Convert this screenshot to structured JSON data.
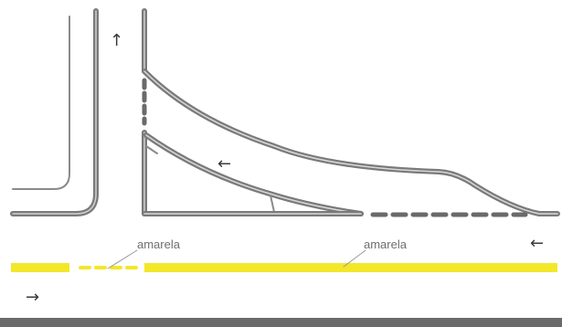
{
  "labels": {
    "yellow_left": "amarela",
    "yellow_right": "amarela"
  },
  "arrows": {
    "north": "↑",
    "island": "←",
    "east_lane": "←",
    "west_lane": "→"
  },
  "colors": {
    "road_edge": "#7a7a7a",
    "road_edge_inner": "#c8c8c8",
    "center_line_yellow": "#f3e72a",
    "label_text": "#6f6f6f",
    "arrow": "#3a3a3a",
    "background": "#ffffff"
  }
}
